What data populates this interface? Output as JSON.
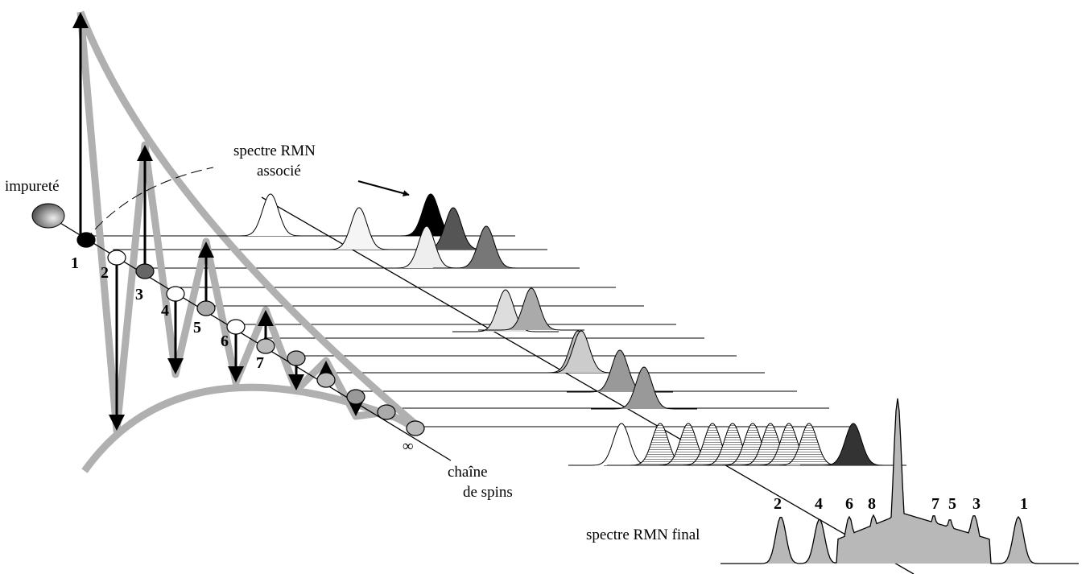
{
  "labels": {
    "impurity": "impureté",
    "associated_spectrum": [
      "spectre RMN",
      "associé"
    ],
    "chain": [
      "chaîne",
      "de spins"
    ],
    "final_spectrum": "spectre RMN final",
    "infinity": "∞"
  },
  "spin_numbers": [
    "1",
    "2",
    "3",
    "4",
    "5",
    "6",
    "7"
  ],
  "peak_labels": [
    "2",
    "4",
    "6",
    "8",
    "7",
    "5",
    "3",
    "1"
  ]
}
